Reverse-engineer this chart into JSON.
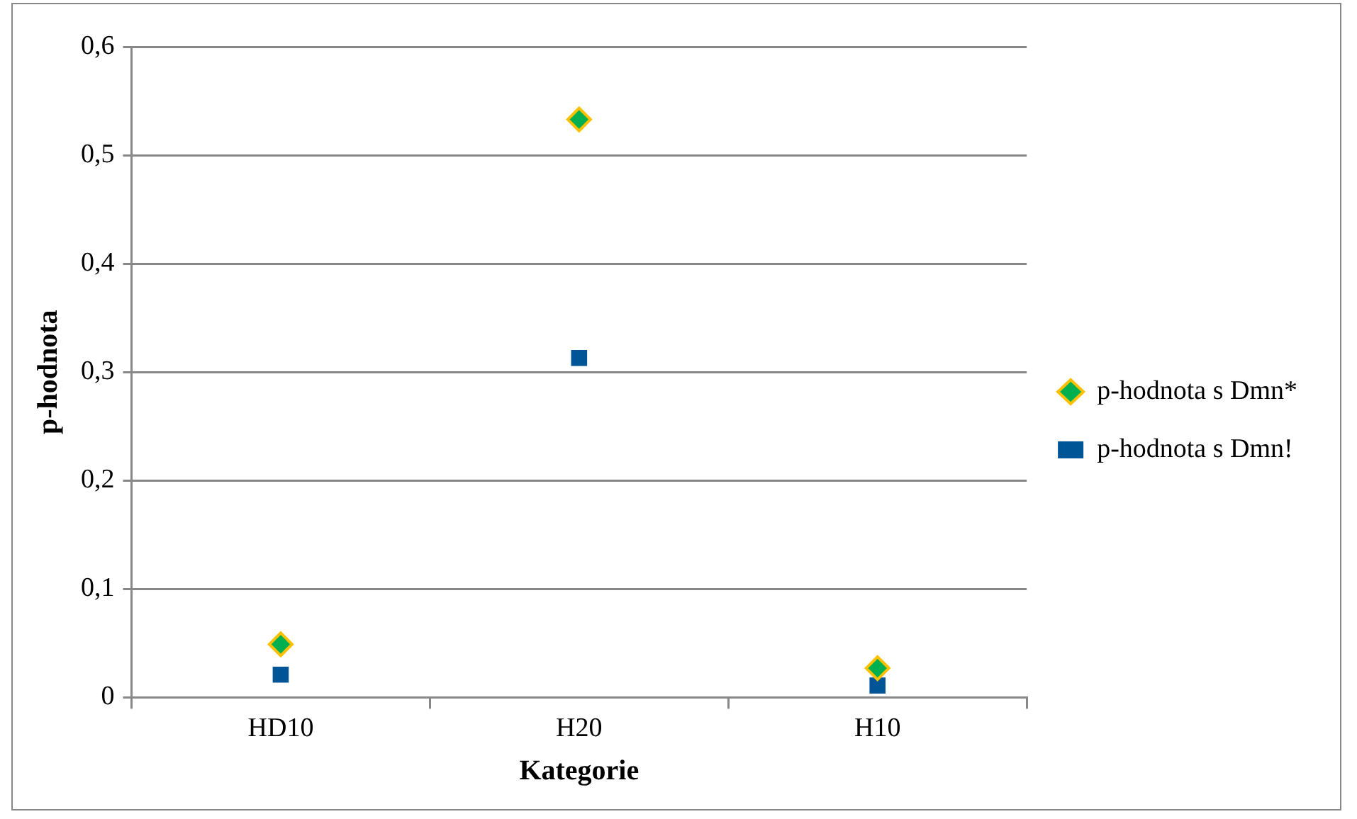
{
  "chart_data": {
    "type": "scatter",
    "xlabel": "Kategorie",
    "ylabel": "p-hodnota",
    "categories": [
      "HD10",
      "H20",
      "H10"
    ],
    "series": [
      {
        "name": "p-hodnota s Dmn*",
        "color": "#00b050",
        "marker": "diamond",
        "values": [
          0.049,
          0.533,
          0.027
        ]
      },
      {
        "name": "p-hodnota s Dmn!",
        "color": "#005596",
        "marker": "square",
        "values": [
          0.021,
          0.313,
          0.011
        ]
      }
    ],
    "ylim": [
      0,
      0.6
    ],
    "yticks": [
      {
        "value": 0,
        "label": "0"
      },
      {
        "value": 0.1,
        "label": "0,1"
      },
      {
        "value": 0.2,
        "label": "0,2"
      },
      {
        "value": 0.3,
        "label": "0,3"
      },
      {
        "value": 0.4,
        "label": "0,4"
      },
      {
        "value": 0.5,
        "label": "0,5"
      },
      {
        "value": 0.6,
        "label": "0,6"
      }
    ],
    "grid": "y",
    "legend": "right"
  }
}
